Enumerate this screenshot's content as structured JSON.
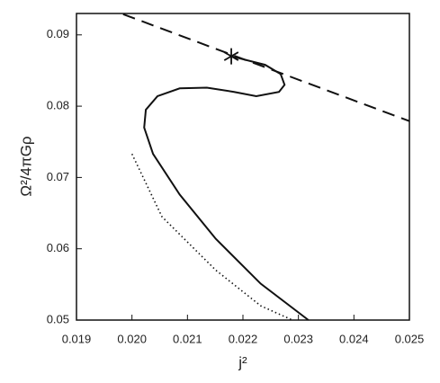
{
  "chart_data": {
    "type": "line",
    "x_label": "j²",
    "y_label": "Ω²/4πGρ",
    "xlim": [
      0.019,
      0.025
    ],
    "ylim": [
      0.05,
      0.093
    ],
    "xticks": [
      0.019,
      {
        "value": 0.02,
        "label": "0.020"
      },
      0.021,
      0.022,
      0.023,
      0.024,
      0.025
    ],
    "yticks": [
      0.05,
      0.06,
      0.07,
      0.08,
      0.09
    ],
    "grid": false,
    "series": [
      {
        "color": "#111111",
        "style": "solid",
        "x": [
          0.02318,
          0.02232,
          0.02151,
          0.02086,
          0.02038,
          0.02022,
          0.02025,
          0.02046,
          0.02086,
          0.02135,
          0.02184,
          0.02224,
          0.02265,
          0.02275,
          0.02268,
          0.0224,
          0.02179
        ],
        "values": [
          0.05,
          0.0551,
          0.0614,
          0.0676,
          0.0733,
          0.077,
          0.0795,
          0.0814,
          0.0825,
          0.0826,
          0.082,
          0.0814,
          0.082,
          0.083,
          0.0845,
          0.0858,
          0.087
        ]
      },
      {
        "color": "#111111",
        "style": "dotted",
        "x": [
          0.02,
          0.02054,
          0.02151,
          0.02232,
          0.02289
        ],
        "values": [
          0.0733,
          0.0645,
          0.057,
          0.052,
          0.05
        ]
      },
      {
        "color": "#111111",
        "style": "dashed",
        "x": [
          0.01984,
          0.025
        ],
        "values": [
          0.0929,
          0.0779
        ]
      }
    ],
    "markers": {
      "symbol": "star",
      "color": "#111111",
      "x": [
        0.02179
      ],
      "values": [
        0.087
      ]
    }
  }
}
